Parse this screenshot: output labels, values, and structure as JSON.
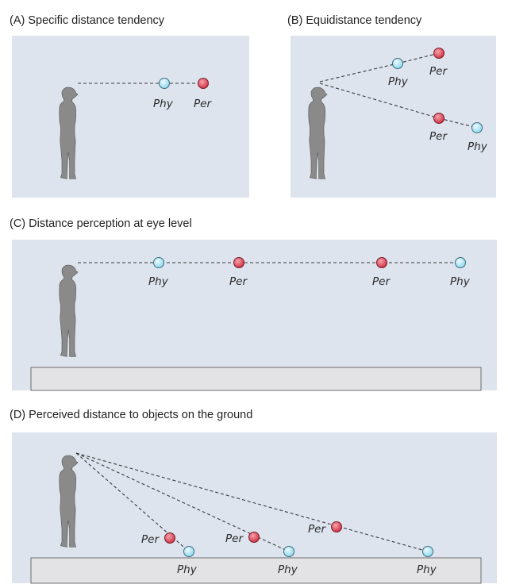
{
  "panels": {
    "a": {
      "title": "(A) Specific distance tendency"
    },
    "b": {
      "title": "(B) Equidistance tendency"
    },
    "c": {
      "title": "(C) Distance perception at eye level"
    },
    "d": {
      "title": "(D) Perceived distance to objects on the ground"
    }
  },
  "labels": {
    "physical": "Phy",
    "perceived": "Per"
  },
  "colors": {
    "panel_bg": "#dde4ee",
    "ground": "#e3e3e5",
    "physical_marker": "#aee6f4",
    "perceived_marker": "#e0505e",
    "figure": "#8a8a8a"
  }
}
